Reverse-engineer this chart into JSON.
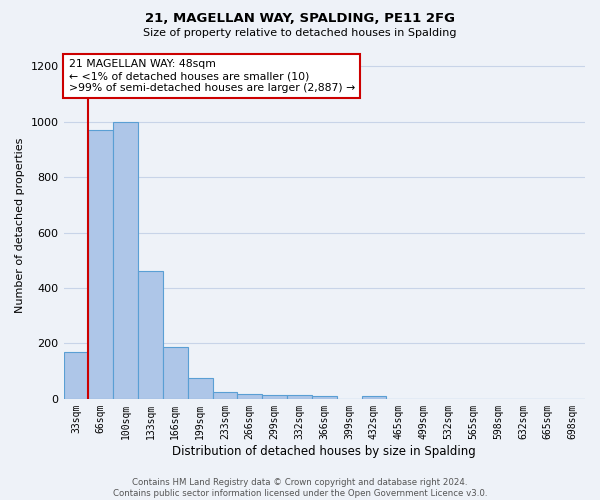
{
  "title": "21, MAGELLAN WAY, SPALDING, PE11 2FG",
  "subtitle": "Size of property relative to detached houses in Spalding",
  "xlabel": "Distribution of detached houses by size in Spalding",
  "ylabel": "Number of detached properties",
  "bin_labels": [
    "33sqm",
    "66sqm",
    "100sqm",
    "133sqm",
    "166sqm",
    "199sqm",
    "233sqm",
    "266sqm",
    "299sqm",
    "332sqm",
    "366sqm",
    "399sqm",
    "432sqm",
    "465sqm",
    "499sqm",
    "532sqm",
    "565sqm",
    "598sqm",
    "632sqm",
    "665sqm",
    "698sqm"
  ],
  "bar_values": [
    170,
    970,
    1000,
    460,
    188,
    75,
    25,
    18,
    15,
    13,
    10,
    0,
    12,
    0,
    0,
    0,
    0,
    0,
    0,
    0,
    0
  ],
  "bar_color": "#aec6e8",
  "bar_edge_color": "#5a9fd4",
  "red_line_x": 0.47,
  "red_line_color": "#cc0000",
  "annotation_title": "21 MAGELLAN WAY: 48sqm",
  "annotation_line1": "← <1% of detached houses are smaller (10)",
  "annotation_line2": ">99% of semi-detached houses are larger (2,887) →",
  "annotation_box_color": "#ffffff",
  "annotation_border_color": "#cc0000",
  "ylim": [
    0,
    1250
  ],
  "yticks": [
    0,
    200,
    400,
    600,
    800,
    1000,
    1200
  ],
  "footer_line1": "Contains HM Land Registry data © Crown copyright and database right 2024.",
  "footer_line2": "Contains public sector information licensed under the Open Government Licence v3.0.",
  "background_color": "#eef2f8",
  "grid_color": "#c8d4e8"
}
